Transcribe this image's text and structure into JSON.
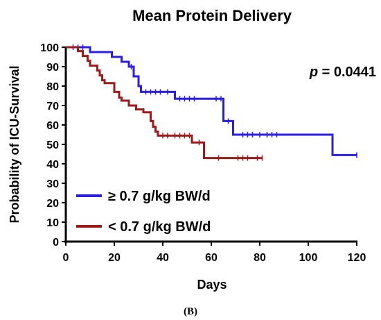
{
  "panel_label": "(B)",
  "chart_data": {
    "type": "line",
    "subtype": "kaplan-meier",
    "title": "Mean Protein Delivery",
    "xlabel": "Days",
    "ylabel": "Probability of ICU-Survival",
    "xlim": [
      0,
      120
    ],
    "ylim": [
      0,
      100
    ],
    "xticks": [
      0,
      20,
      40,
      60,
      80,
      100,
      120
    ],
    "yticks": [
      0,
      10,
      20,
      30,
      40,
      50,
      60,
      70,
      80,
      90,
      100
    ],
    "grid": false,
    "legend_position": "bottom-left",
    "annotation": {
      "italic": "p",
      "rest": " = 0.0441"
    },
    "series": [
      {
        "name": "≥ 0.7 g/kg BW/d",
        "color": "#2b1ee0",
        "steps": [
          [
            0,
            100
          ],
          [
            10,
            97.5
          ],
          [
            19,
            95
          ],
          [
            23,
            92.5
          ],
          [
            26,
            90
          ],
          [
            28,
            85
          ],
          [
            30,
            80
          ],
          [
            31,
            77
          ],
          [
            45,
            73.5
          ],
          [
            65,
            62
          ],
          [
            69,
            55
          ],
          [
            110,
            44.5
          ],
          [
            120,
            44.5
          ]
        ],
        "censored": [
          [
            3,
            100
          ],
          [
            5,
            100
          ],
          [
            7,
            100
          ],
          [
            27,
            90
          ],
          [
            33,
            77
          ],
          [
            35,
            77
          ],
          [
            37,
            77
          ],
          [
            39,
            77
          ],
          [
            42,
            77
          ],
          [
            47,
            73.5
          ],
          [
            49,
            73.5
          ],
          [
            51,
            73.5
          ],
          [
            53,
            73.5
          ],
          [
            62,
            73.5
          ],
          [
            64,
            73.5
          ],
          [
            67,
            62
          ],
          [
            73,
            55
          ],
          [
            75,
            55
          ],
          [
            77,
            55
          ],
          [
            80,
            55
          ],
          [
            83,
            55
          ],
          [
            85,
            55
          ],
          [
            87,
            55
          ],
          [
            120,
            44.5
          ]
        ]
      },
      {
        "name": "< 0.7 g/kg BW/d",
        "color": "#9b1a1a",
        "steps": [
          [
            0,
            100
          ],
          [
            5,
            98
          ],
          [
            7,
            95.5
          ],
          [
            9,
            93
          ],
          [
            10,
            90.5
          ],
          [
            13,
            88
          ],
          [
            14,
            85.5
          ],
          [
            15,
            83
          ],
          [
            16,
            81.5
          ],
          [
            20,
            77
          ],
          [
            22,
            74
          ],
          [
            23,
            72.5
          ],
          [
            26,
            70
          ],
          [
            29,
            68
          ],
          [
            32,
            66.5
          ],
          [
            35,
            62
          ],
          [
            36,
            59
          ],
          [
            37,
            56.5
          ],
          [
            38,
            54.5
          ],
          [
            52,
            51
          ],
          [
            57,
            43
          ],
          [
            81,
            43
          ]
        ],
        "censored": [
          [
            40,
            54.5
          ],
          [
            42,
            54.5
          ],
          [
            45,
            54.5
          ],
          [
            47,
            54.5
          ],
          [
            49,
            54.5
          ],
          [
            51,
            54.5
          ],
          [
            55,
            51
          ],
          [
            63,
            43
          ],
          [
            71,
            43
          ],
          [
            73,
            43
          ],
          [
            75,
            43
          ],
          [
            79,
            43
          ],
          [
            81,
            43
          ]
        ]
      }
    ]
  }
}
